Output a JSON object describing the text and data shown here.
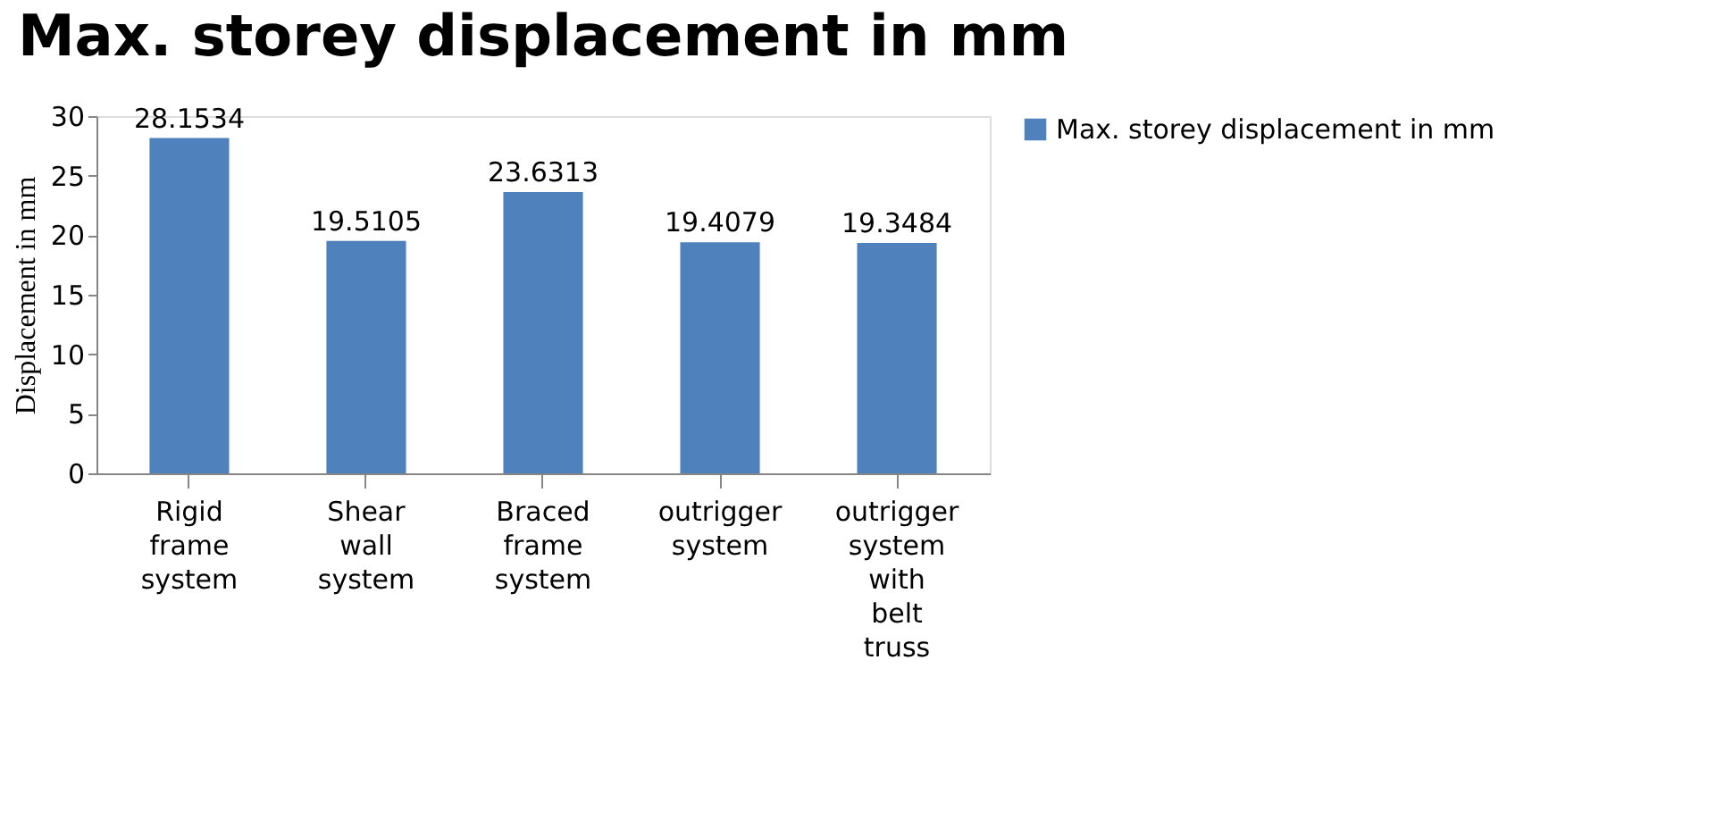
{
  "chart_data": {
    "type": "bar",
    "title": "Max. storey displacement in mm",
    "ylabel": "Displacement in mm",
    "categories": [
      "Rigid frame system",
      "Shear wall system",
      "Braced frame system",
      "outrigger system",
      "outrigger system with belt truss"
    ],
    "series": [
      {
        "name": "Max. storey displacement in mm",
        "color": "#4f81bd",
        "values": [
          28.1534,
          19.5105,
          23.6313,
          19.4079,
          19.3484
        ]
      }
    ],
    "ylim": [
      0,
      30
    ],
    "yticks": [
      0,
      5,
      10,
      15,
      20,
      25,
      30
    ],
    "grid": false,
    "legend": "right",
    "data_labels": true
  }
}
